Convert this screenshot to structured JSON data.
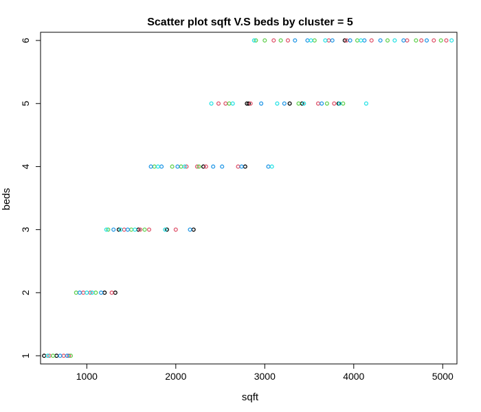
{
  "chart_data": {
    "type": "scatter",
    "title": "Scatter plot sqft V.S beds by cluster = 5",
    "xlabel": "sqft",
    "ylabel": "beds",
    "xlim": [
      480,
      5160
    ],
    "ylim": [
      0.87,
      6.13
    ],
    "xticks": [
      1000,
      2000,
      3000,
      4000,
      5000
    ],
    "xtick_labels": [
      "1000",
      "2000",
      "3000",
      "4000",
      "5000"
    ],
    "yticks": [
      1,
      2,
      3,
      4,
      5,
      6
    ],
    "ytick_labels": [
      "1",
      "2",
      "3",
      "4",
      "5",
      "6"
    ],
    "grid": false,
    "legend": "none",
    "marker": "open-circle",
    "series_colors": [
      "#000000",
      "#DF536B",
      "#61D04F",
      "#2297E6",
      "#28E2E5"
    ],
    "series": [
      {
        "values_x": [
          520,
          660,
          1200,
          1320,
          1360,
          1580,
          1900,
          2200,
          2310,
          2780,
          2800,
          2820,
          3280,
          3420,
          3830,
          3900
        ],
        "values_y": [
          1,
          1,
          2,
          2,
          3,
          3,
          3,
          3,
          4,
          4,
          5,
          5,
          5,
          5,
          5,
          6
        ]
      },
      {
        "values_x": [
          580,
          740,
          800,
          960,
          1040,
          1280,
          1420,
          1600,
          1700,
          2000,
          2120,
          2240,
          2340,
          2480,
          2560,
          2700,
          2840,
          3100,
          3260,
          3600,
          3720,
          3780,
          3920,
          4200,
          4600,
          4760,
          4900,
          5040
        ],
        "values_y": [
          1,
          1,
          1,
          2,
          2,
          2,
          3,
          3,
          3,
          3,
          4,
          4,
          4,
          5,
          5,
          4,
          5,
          6,
          6,
          5,
          6,
          5,
          6,
          6,
          6,
          6,
          6,
          6
        ]
      },
      {
        "values_x": [
          620,
          820,
          880,
          1100,
          1240,
          1500,
          1650,
          1760,
          1960,
          2060,
          2260,
          2600,
          2900,
          3000,
          3180,
          3380,
          3560,
          3700,
          3880,
          4040,
          4380,
          4700,
          4980
        ],
        "values_y": [
          1,
          1,
          2,
          2,
          3,
          3,
          3,
          4,
          4,
          4,
          4,
          5,
          6,
          6,
          6,
          5,
          6,
          5,
          5,
          6,
          6,
          6,
          6
        ]
      },
      {
        "values_x": [
          700,
          780,
          920,
          1160,
          1300,
          1460,
          1720,
          1840,
          2020,
          2160,
          2420,
          2520,
          2740,
          2960,
          3040,
          3220,
          3340,
          3480,
          3640,
          3760,
          3960,
          4120,
          4300,
          4560,
          4820
        ],
        "values_y": [
          1,
          1,
          2,
          2,
          3,
          3,
          4,
          4,
          4,
          3,
          4,
          4,
          4,
          5,
          4,
          5,
          6,
          6,
          5,
          6,
          6,
          6,
          6,
          6,
          6
        ]
      },
      {
        "values_x": [
          560,
          1000,
          1060,
          1220,
          1380,
          1540,
          1800,
          1880,
          2100,
          2400,
          2640,
          2880,
          3080,
          3140,
          3440,
          3520,
          3680,
          3840,
          4080,
          4140,
          4460,
          5100
        ],
        "values_y": [
          1,
          2,
          2,
          3,
          3,
          3,
          4,
          3,
          4,
          5,
          5,
          6,
          4,
          5,
          5,
          6,
          6,
          5,
          6,
          5,
          6,
          6
        ]
      }
    ]
  }
}
